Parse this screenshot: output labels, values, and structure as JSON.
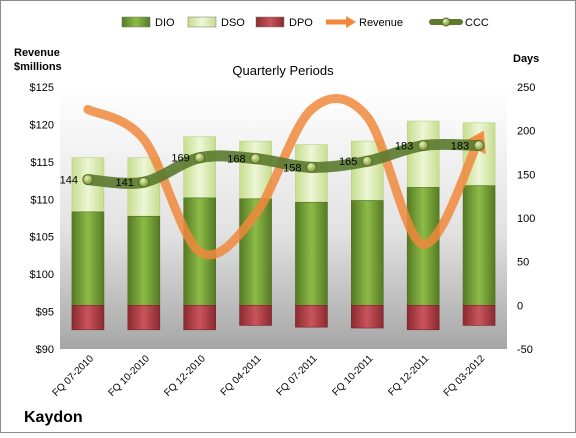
{
  "chart_data": {
    "type": "bar",
    "title": "Quarterly Periods",
    "company": "Kaydon",
    "left_axis": {
      "label_line1": "Revenue",
      "label_line2": "$millions",
      "ylim": [
        90,
        125
      ],
      "ticks": [
        "$90",
        "$95",
        "$100",
        "$105",
        "$110",
        "$115",
        "$120",
        "$125"
      ],
      "tick_values": [
        90,
        95,
        100,
        105,
        110,
        115,
        120,
        125
      ]
    },
    "right_axis": {
      "label": "Days",
      "ylim": [
        -50,
        250
      ],
      "ticks": [
        "-50",
        "0",
        "50",
        "100",
        "150",
        "200",
        "250"
      ],
      "tick_values": [
        -50,
        0,
        50,
        100,
        150,
        200,
        250
      ]
    },
    "categories": [
      "FQ 07-2010",
      "FQ 10-2010",
      "FQ 12-2010",
      "FQ 04-2011",
      "FQ 07-2011",
      "FQ 10-2011",
      "FQ 12-2011",
      "FQ 03-2012"
    ],
    "legend": [
      "DIO",
      "DSO",
      "DPO",
      "Revenue",
      "CCC"
    ],
    "legend_placement": "top",
    "series": [
      {
        "name": "DIO",
        "axis": "right",
        "values": [
          107,
          102,
          123,
          122,
          118,
          120,
          135,
          137
        ],
        "color": "#6e9a32"
      },
      {
        "name": "DSO",
        "axis": "right",
        "values": [
          62,
          67,
          70,
          66,
          66,
          68,
          76,
          72
        ],
        "color": "#d9ebb0"
      },
      {
        "name": "DPO",
        "axis": "right",
        "values": [
          -28,
          -28,
          -28,
          -23,
          -25,
          -26,
          -28,
          -23
        ],
        "color": "#a83a3f"
      },
      {
        "name": "Revenue",
        "axis": "left",
        "values": [
          122,
          118,
          103,
          108,
          122,
          121,
          104,
          118
        ],
        "color": "#f0883c"
      },
      {
        "name": "CCC",
        "axis": "right",
        "values": [
          144,
          141,
          169,
          168,
          158,
          165,
          183,
          183
        ],
        "labels": [
          "144",
          "141",
          "169",
          "168",
          "158",
          "165",
          "183",
          "183"
        ],
        "color": "#5a7a2e"
      }
    ]
  }
}
